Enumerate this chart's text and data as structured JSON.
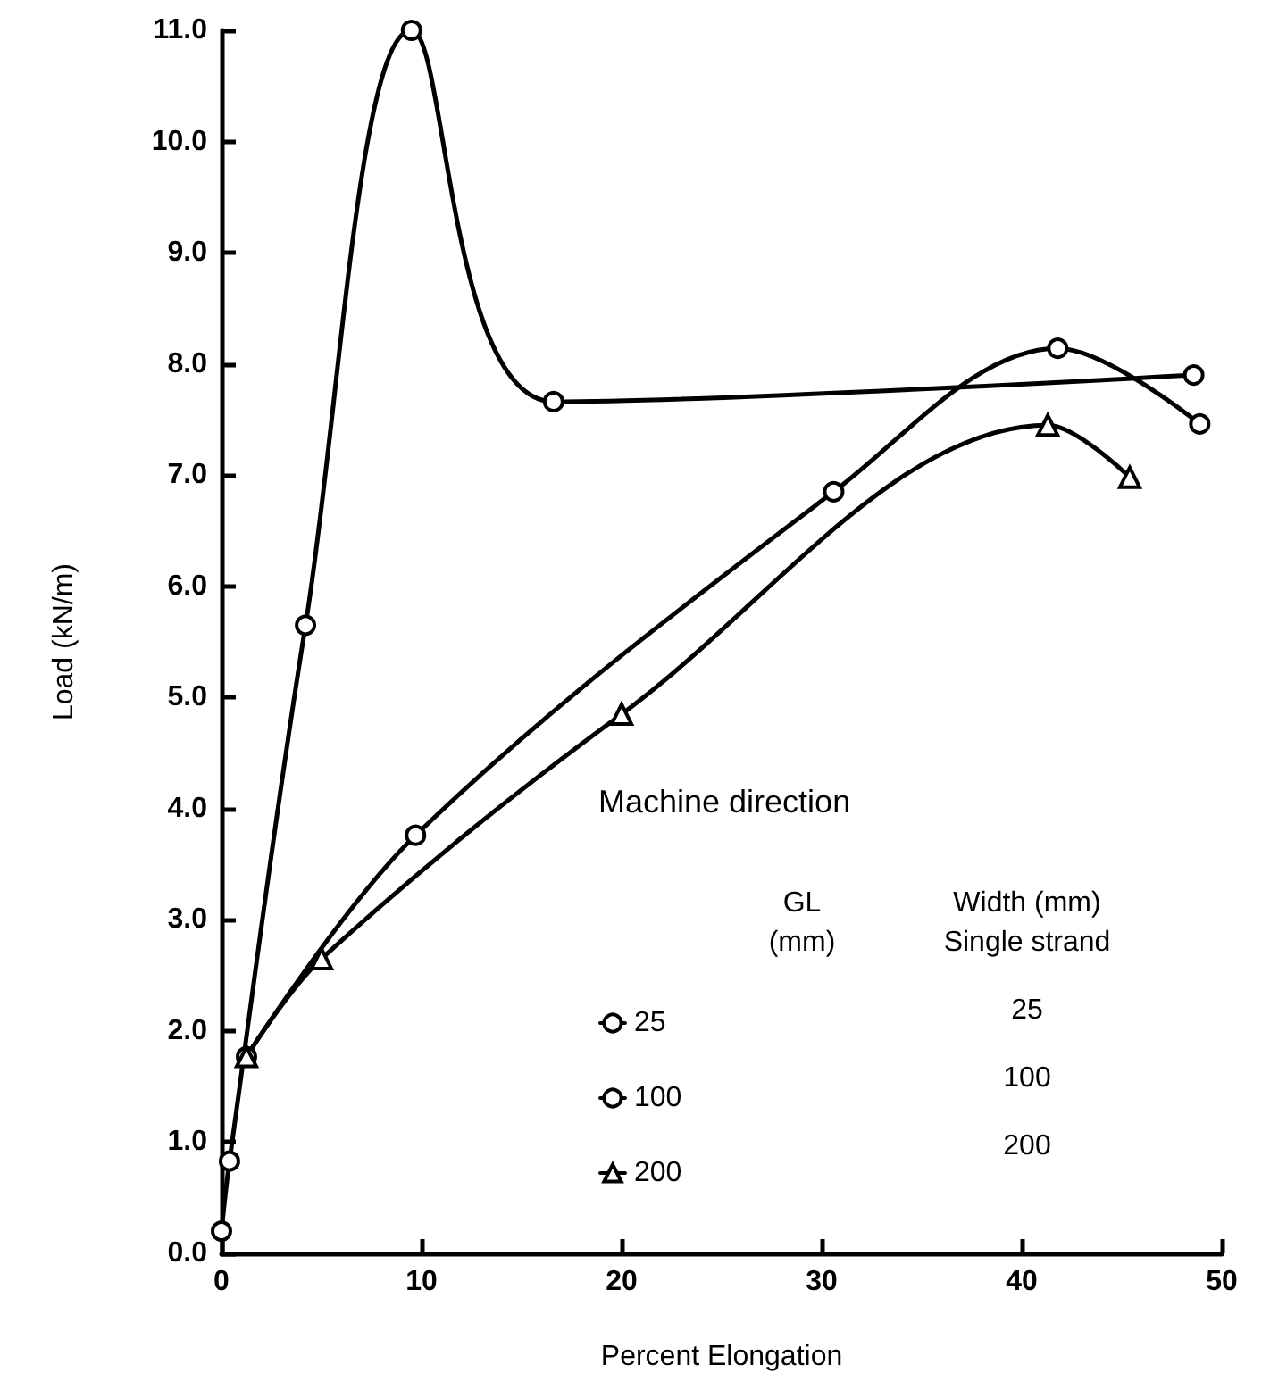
{
  "chart_data": {
    "type": "line",
    "xlabel": "Percent Elongation",
    "ylabel": "Load (kN/m)",
    "legend_title": "Machine direction",
    "legend": "bottom",
    "grid": false,
    "line_style": "solid",
    "annotations": [
      "GL\n(mm)",
      "Width (mm)\nSingle strand",
      "25",
      "100",
      "200"
    ],
    "xlim": [
      0,
      50
    ],
    "xticks": [
      0,
      10,
      20,
      30,
      40,
      50
    ],
    "ylim": [
      0,
      11
    ],
    "yticks": [
      {
        "value": 0,
        "label": "0.0"
      },
      {
        "value": 1,
        "label": "1.0"
      },
      {
        "value": 2,
        "label": "2.0"
      },
      {
        "value": 3,
        "label": "3.0"
      },
      {
        "value": 4,
        "label": "4.0"
      },
      {
        "value": 5,
        "label": "5.0"
      },
      {
        "value": 6,
        "label": "6.0"
      },
      {
        "value": 7,
        "label": "7.0"
      },
      {
        "value": 8,
        "label": "8.0"
      },
      {
        "value": 9,
        "label": "9.0"
      },
      {
        "value": 10,
        "label": "10.0"
      },
      {
        "value": 11,
        "label": "11.0"
      }
    ],
    "series": [
      {
        "name": "25",
        "color": "#000000",
        "marker": "circle",
        "x": [
          0,
          0.4,
          4.2,
          9.5,
          16.6,
          48.6
        ],
        "values": [
          0.2,
          0.83,
          5.65,
          11.0,
          7.66,
          7.9
        ]
      },
      {
        "name": "100",
        "color": "#000000",
        "marker": "circle",
        "x": [
          1.25,
          9.7,
          30.6,
          41.8,
          48.9
        ],
        "values": [
          1.77,
          3.76,
          6.85,
          8.14,
          7.46
        ]
      },
      {
        "name": "200",
        "color": "#000000",
        "marker": "triangle",
        "x": [
          1.25,
          5,
          20,
          41.3,
          45.4
        ],
        "values": [
          1.77,
          2.65,
          4.85,
          7.45,
          6.98
        ]
      }
    ]
  }
}
